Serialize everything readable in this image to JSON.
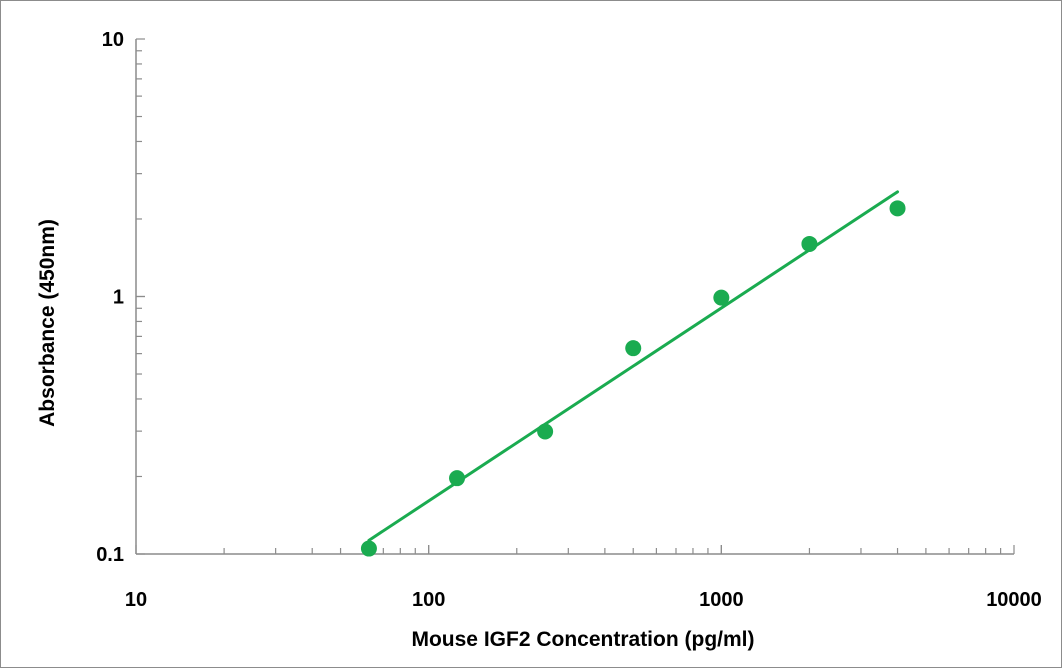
{
  "chart_data": {
    "type": "scatter",
    "title": "",
    "xlabel": "Mouse IGF2 Concentration (pg/ml)",
    "ylabel": "Absorbance (450nm)",
    "x_scale": "log",
    "y_scale": "log",
    "xlim": [
      10,
      10000
    ],
    "ylim": [
      0.1,
      10
    ],
    "x_ticks": [
      {
        "value": 10,
        "label": "10"
      },
      {
        "value": 100,
        "label": "100"
      },
      {
        "value": 1000,
        "label": "1000"
      },
      {
        "value": 10000,
        "label": "10000"
      }
    ],
    "y_ticks": [
      {
        "value": 0.1,
        "label": "0.1"
      },
      {
        "value": 1,
        "label": "1"
      },
      {
        "value": 10,
        "label": "10"
      }
    ],
    "grid": false,
    "legend": "none",
    "series": [
      {
        "color": "#1aab50",
        "points": [
          {
            "x": 62.5,
            "y": 0.105
          },
          {
            "x": 125,
            "y": 0.197
          },
          {
            "x": 250,
            "y": 0.299
          },
          {
            "x": 500,
            "y": 0.63
          },
          {
            "x": 1000,
            "y": 0.99
          },
          {
            "x": 2000,
            "y": 1.6
          },
          {
            "x": 4000,
            "y": 2.2
          }
        ]
      }
    ],
    "trendline": {
      "type": "power",
      "color": "#1aab50",
      "x_range": [
        62.5,
        4000
      ],
      "y_range": [
        0.113,
        2.55
      ]
    }
  }
}
